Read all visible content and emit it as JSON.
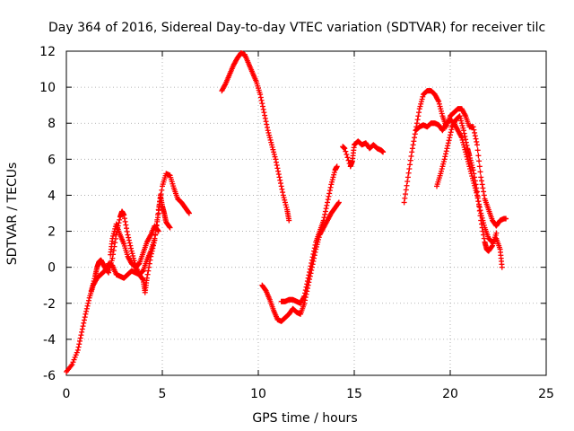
{
  "chart_data": {
    "type": "scatter",
    "title": "Day 364 of 2016, Sidereal Day-to-day VTEC variation (SDTVAR) for receiver tilc",
    "xlabel": "GPS time / hours",
    "ylabel": "SDTVAR / TECUs",
    "xlim": [
      0,
      25
    ],
    "ylim": [
      -6,
      12
    ],
    "xticks": [
      0,
      5,
      10,
      15,
      20,
      25
    ],
    "yticks": [
      -6,
      -4,
      -2,
      0,
      2,
      4,
      6,
      8,
      10,
      12
    ],
    "grid": true,
    "marker": "+",
    "series_color": "#ff0000",
    "segments": [
      [
        [
          0.0,
          -5.8
        ],
        [
          0.3,
          -5.4
        ],
        [
          0.6,
          -4.6
        ],
        [
          0.8,
          -3.6
        ],
        [
          1.0,
          -2.6
        ],
        [
          1.2,
          -1.7
        ],
        [
          1.4,
          -1.0
        ],
        [
          1.6,
          -0.6
        ],
        [
          1.8,
          -0.4
        ],
        [
          2.0,
          -0.2
        ],
        [
          2.2,
          0.2
        ],
        [
          2.4,
          0.1
        ],
        [
          2.6,
          -0.4
        ],
        [
          2.8,
          -0.5
        ],
        [
          3.0,
          -0.6
        ],
        [
          3.2,
          -0.4
        ],
        [
          3.4,
          -0.2
        ],
        [
          3.6,
          -0.3
        ],
        [
          3.8,
          -0.4
        ],
        [
          4.0,
          -0.2
        ],
        [
          4.2,
          0.4
        ],
        [
          4.4,
          0.9
        ],
        [
          4.6,
          1.6
        ],
        [
          4.8,
          3.0
        ],
        [
          4.9,
          4.0
        ],
        [
          5.0,
          3.4
        ],
        [
          5.1,
          3.0
        ],
        [
          5.2,
          2.5
        ],
        [
          5.4,
          2.2
        ]
      ],
      [
        [
          1.3,
          -1.3
        ],
        [
          1.5,
          -0.5
        ],
        [
          1.6,
          0.0
        ],
        [
          1.7,
          0.3
        ],
        [
          1.8,
          0.4
        ],
        [
          1.9,
          0.2
        ],
        [
          2.0,
          0.0
        ],
        [
          2.2,
          -0.3
        ],
        [
          2.4,
          0.5
        ],
        [
          2.6,
          1.8
        ],
        [
          2.8,
          2.8
        ],
        [
          2.9,
          3.1
        ],
        [
          3.0,
          2.9
        ],
        [
          3.2,
          1.8
        ],
        [
          3.4,
          0.9
        ],
        [
          3.6,
          0.1
        ],
        [
          3.8,
          -0.4
        ],
        [
          4.0,
          -0.7
        ],
        [
          4.1,
          -1.4
        ],
        [
          4.2,
          -0.6
        ],
        [
          4.4,
          0.6
        ],
        [
          4.6,
          1.5
        ],
        [
          4.8,
          3.2
        ],
        [
          5.0,
          4.5
        ],
        [
          5.2,
          5.2
        ],
        [
          5.4,
          5.1
        ],
        [
          5.6,
          4.4
        ],
        [
          5.8,
          3.8
        ],
        [
          6.0,
          3.6
        ],
        [
          6.2,
          3.3
        ],
        [
          6.4,
          3.0
        ]
      ],
      [
        [
          2.3,
          0.7
        ],
        [
          2.4,
          1.6
        ],
        [
          2.6,
          2.4
        ],
        [
          2.8,
          1.8
        ],
        [
          3.0,
          1.3
        ],
        [
          3.2,
          0.6
        ],
        [
          3.4,
          0.2
        ],
        [
          3.6,
          0.0
        ],
        [
          3.8,
          0.2
        ],
        [
          4.0,
          0.8
        ],
        [
          4.2,
          1.4
        ],
        [
          4.4,
          1.8
        ],
        [
          4.6,
          2.3
        ],
        [
          4.8,
          2.0
        ]
      ],
      [
        [
          8.1,
          9.8
        ],
        [
          8.3,
          10.2
        ],
        [
          8.5,
          10.7
        ],
        [
          8.7,
          11.2
        ],
        [
          8.9,
          11.6
        ],
        [
          9.1,
          11.9
        ],
        [
          9.3,
          11.8
        ],
        [
          9.5,
          11.3
        ],
        [
          9.7,
          10.8
        ],
        [
          9.9,
          10.3
        ],
        [
          10.1,
          9.6
        ],
        [
          10.3,
          8.6
        ],
        [
          10.5,
          7.6
        ],
        [
          10.7,
          6.8
        ],
        [
          10.9,
          6.0
        ],
        [
          11.1,
          5.0
        ],
        [
          11.3,
          4.0
        ],
        [
          11.5,
          3.2
        ],
        [
          11.6,
          2.6
        ]
      ],
      [
        [
          10.2,
          -1.0
        ],
        [
          10.4,
          -1.3
        ],
        [
          10.6,
          -1.8
        ],
        [
          10.8,
          -2.4
        ],
        [
          11.0,
          -2.9
        ],
        [
          11.2,
          -3.0
        ],
        [
          11.4,
          -2.8
        ],
        [
          11.6,
          -2.6
        ],
        [
          11.8,
          -2.3
        ],
        [
          12.0,
          -2.5
        ],
        [
          12.2,
          -2.6
        ],
        [
          12.4,
          -2.0
        ],
        [
          12.6,
          -1.0
        ],
        [
          12.8,
          0.0
        ],
        [
          13.0,
          1.0
        ],
        [
          13.2,
          1.8
        ],
        [
          13.4,
          2.2
        ],
        [
          13.6,
          2.6
        ],
        [
          13.8,
          3.0
        ],
        [
          14.0,
          3.3
        ],
        [
          14.2,
          3.6
        ]
      ],
      [
        [
          11.2,
          -1.9
        ],
        [
          11.4,
          -1.9
        ],
        [
          11.6,
          -1.8
        ],
        [
          11.8,
          -1.8
        ],
        [
          12.0,
          -1.9
        ],
        [
          12.2,
          -2.0
        ],
        [
          12.4,
          -1.6
        ],
        [
          12.6,
          -0.6
        ],
        [
          12.8,
          0.4
        ],
        [
          13.0,
          1.4
        ],
        [
          13.2,
          2.0
        ],
        [
          13.4,
          2.6
        ],
        [
          13.6,
          3.6
        ],
        [
          13.8,
          4.6
        ],
        [
          14.0,
          5.4
        ],
        [
          14.1,
          5.6
        ]
      ],
      [
        [
          14.4,
          6.7
        ],
        [
          14.5,
          6.6
        ],
        [
          14.8,
          5.6
        ],
        [
          14.9,
          5.9
        ],
        [
          15.0,
          6.8
        ],
        [
          15.2,
          7.0
        ],
        [
          15.4,
          6.8
        ],
        [
          15.6,
          6.9
        ],
        [
          15.8,
          6.6
        ],
        [
          16.0,
          6.8
        ],
        [
          16.2,
          6.6
        ],
        [
          16.4,
          6.5
        ],
        [
          16.5,
          6.4
        ]
      ],
      [
        [
          17.6,
          3.6
        ],
        [
          17.8,
          5.0
        ],
        [
          18.0,
          6.4
        ],
        [
          18.2,
          7.6
        ],
        [
          18.4,
          8.8
        ],
        [
          18.6,
          9.6
        ],
        [
          18.8,
          9.8
        ],
        [
          19.0,
          9.8
        ],
        [
          19.2,
          9.6
        ],
        [
          19.4,
          9.2
        ],
        [
          19.6,
          8.4
        ],
        [
          19.8,
          7.8
        ],
        [
          20.0,
          8.4
        ],
        [
          20.2,
          8.6
        ],
        [
          20.4,
          8.8
        ],
        [
          20.6,
          8.8
        ],
        [
          20.8,
          8.4
        ],
        [
          21.0,
          7.8
        ],
        [
          21.2,
          7.8
        ],
        [
          21.4,
          6.8
        ],
        [
          21.6,
          5.0
        ],
        [
          21.8,
          3.8
        ],
        [
          22.0,
          3.2
        ],
        [
          22.2,
          2.6
        ],
        [
          22.4,
          2.3
        ],
        [
          22.6,
          2.6
        ],
        [
          22.8,
          2.7
        ],
        [
          22.9,
          2.7
        ]
      ],
      [
        [
          18.2,
          7.6
        ],
        [
          18.4,
          7.8
        ],
        [
          18.6,
          7.9
        ],
        [
          18.8,
          7.8
        ],
        [
          19.0,
          8.0
        ],
        [
          19.2,
          8.0
        ],
        [
          19.4,
          7.9
        ],
        [
          19.6,
          7.6
        ],
        [
          19.8,
          8.0
        ],
        [
          20.0,
          8.2
        ],
        [
          20.2,
          8.0
        ],
        [
          20.4,
          7.6
        ],
        [
          20.6,
          7.2
        ],
        [
          20.8,
          6.4
        ],
        [
          21.0,
          5.6
        ],
        [
          21.2,
          4.8
        ],
        [
          21.4,
          4.0
        ],
        [
          21.6,
          3.0
        ],
        [
          21.8,
          2.2
        ],
        [
          22.0,
          1.6
        ],
        [
          22.2,
          1.4
        ],
        [
          22.4,
          1.6
        ],
        [
          22.6,
          1.0
        ],
        [
          22.7,
          0.0
        ]
      ],
      [
        [
          19.3,
          4.5
        ],
        [
          19.5,
          5.2
        ],
        [
          19.7,
          6.0
        ],
        [
          19.9,
          6.9
        ],
        [
          20.1,
          7.8
        ],
        [
          20.3,
          8.2
        ],
        [
          20.5,
          8.4
        ],
        [
          20.7,
          7.6
        ],
        [
          20.9,
          6.6
        ],
        [
          21.0,
          6.2
        ],
        [
          21.2,
          5.4
        ],
        [
          21.4,
          4.2
        ],
        [
          21.6,
          2.6
        ],
        [
          21.8,
          1.4
        ],
        [
          21.9,
          1.0
        ],
        [
          22.0,
          0.9
        ],
        [
          22.2,
          1.2
        ],
        [
          22.4,
          1.9
        ]
      ]
    ]
  }
}
